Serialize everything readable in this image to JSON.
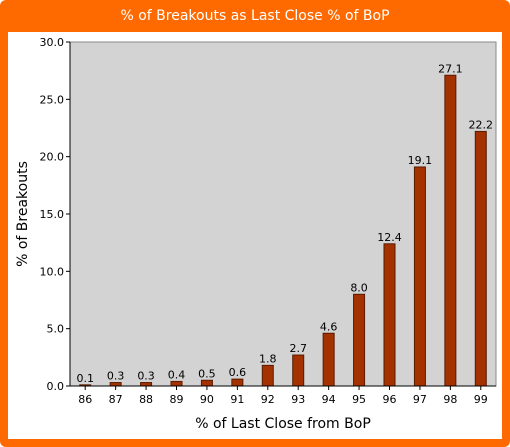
{
  "window": {
    "title": "% of Breakouts as Last Close % of BoP"
  },
  "colors": {
    "frame": "#ff6a00",
    "plot_background": "#d3d3d3",
    "bar_fill": "#a33200",
    "bar_stroke": "#5a1a00"
  },
  "chart_data": {
    "type": "bar",
    "title": "% of Breakouts as Last Close % of BoP",
    "xlabel": "% of Last Close from BoP",
    "ylabel": "% of Breakouts",
    "categories": [
      "86",
      "87",
      "88",
      "89",
      "90",
      "91",
      "92",
      "93",
      "94",
      "95",
      "96",
      "97",
      "98",
      "99"
    ],
    "values": [
      0.1,
      0.3,
      0.3,
      0.4,
      0.5,
      0.6,
      1.8,
      2.7,
      4.6,
      8.0,
      12.4,
      19.1,
      27.1,
      22.2
    ],
    "data_labels": [
      "0.1",
      "0.3",
      "0.3",
      "0.4",
      "0.5",
      "0.6",
      "1.8",
      "2.7",
      "4.6",
      "8.0",
      "12.4",
      "19.1",
      "27.1",
      "22.2"
    ],
    "ylim": [
      0,
      30
    ],
    "yticks": [
      0,
      5,
      10,
      15,
      20,
      25,
      30
    ],
    "ytick_labels": [
      "0.0",
      "5.0",
      "10.0",
      "15.0",
      "20.0",
      "25.0",
      "30.0"
    ],
    "grid": false,
    "legend": "none"
  }
}
